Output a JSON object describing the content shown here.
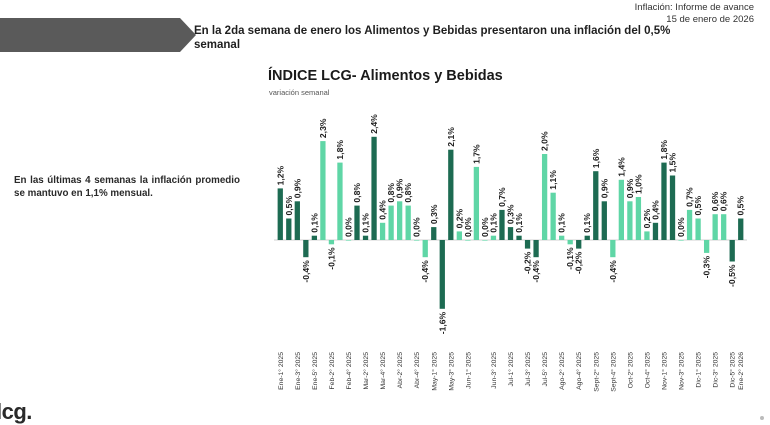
{
  "header": {
    "report_title": "Inflación: Informe de avance",
    "report_date": "15 de enero de 2026",
    "headline": "En la 2da semana de enero los Alimentos y Bebidas presentaron una inflación del 0,5% semanal"
  },
  "side_note": "En las últimas 4 semanas la inflación promedio se mantuvo en 1,1% mensual.",
  "logo_text": "lcg.",
  "colors": {
    "dark": "#1d6b52",
    "light": "#5fd6a6",
    "banner": "#5a5a5a"
  },
  "chart_data": {
    "type": "bar",
    "title": "ÍNDICE LCG- Alimentos y Bebidas",
    "subtitle": "variación semanal",
    "series": [
      {
        "name": "variación semanal",
        "values": [
          1.2,
          0.5,
          0.9,
          -0.4,
          0.1,
          2.3,
          -0.1,
          1.8,
          0.0,
          0.8,
          0.1,
          2.4,
          0.4,
          0.8,
          0.9,
          0.8,
          0.0,
          -0.4,
          0.3,
          -1.6,
          2.1,
          0.2,
          0.0,
          1.7,
          0.0,
          0.1,
          0.7,
          0.3,
          0.1,
          -0.2,
          -0.4,
          2.0,
          1.1,
          0.1,
          -0.1,
          -0.2,
          0.1,
          1.6,
          0.9,
          -0.4,
          1.4,
          0.9,
          1.0,
          0.2,
          0.4,
          1.8,
          1.5,
          0.0,
          0.7,
          0.5,
          -0.3,
          0.6,
          0.6,
          -0.5,
          0.5
        ],
        "labels": [
          "1,2%",
          "0,5%",
          "0,9%",
          "-0,4%",
          "0,1%",
          "2,3%",
          "-0,1%",
          "1,8%",
          "0,0%",
          "0,8%",
          "0,1%",
          "2,4%",
          "0,4%",
          "0,8%",
          "0,9%",
          "0,8%",
          "0,0%",
          "-0,4%",
          "0,3%",
          "-1,6%",
          "2,1%",
          "0,2%",
          "0,0%",
          "1,7%",
          "0,0%",
          "0,1%",
          "0,7%",
          "0,3%",
          "0,1%",
          "-0,2%",
          "-0,4%",
          "2,0%",
          "1,1%",
          "0,1%",
          "-0,1%",
          "-0,2%",
          "0,1%",
          "1,6%",
          "0,9%",
          "-0,4%",
          "1,4%",
          "0,9%",
          "1,0%",
          "0,2%",
          "0,4%",
          "1,8%",
          "1,5%",
          "0,0%",
          "0,7%",
          "0,5%",
          "-0,3%",
          "0,6%",
          "0,6%",
          "-0,5%",
          "0,5%"
        ],
        "shade": [
          "d",
          "d",
          "d",
          "d",
          "d",
          "l",
          "l",
          "l",
          "l",
          "d",
          "d",
          "d",
          "l",
          "l",
          "l",
          "l",
          "l",
          "l",
          "d",
          "d",
          "d",
          "l",
          "l",
          "l",
          "l",
          "l",
          "d",
          "d",
          "d",
          "d",
          "d",
          "l",
          "l",
          "l",
          "l",
          "d",
          "d",
          "d",
          "d",
          "l",
          "l",
          "l",
          "l",
          "l",
          "d",
          "d",
          "d",
          "l",
          "l",
          "l",
          "l",
          "l",
          "l",
          "d",
          "d"
        ]
      }
    ],
    "ticks": [
      {
        "index": 0,
        "label": "Ene-1° 2025"
      },
      {
        "index": 2,
        "label": "Ene-3° 2025"
      },
      {
        "index": 4,
        "label": "Ene-5° 2025"
      },
      {
        "index": 6,
        "label": "Feb-2° 2025"
      },
      {
        "index": 8,
        "label": "Feb-4° 2025"
      },
      {
        "index": 10,
        "label": "Mar-2° 2025"
      },
      {
        "index": 12,
        "label": "Mar-4° 2025"
      },
      {
        "index": 14,
        "label": "Abr-2° 2025"
      },
      {
        "index": 16,
        "label": "Abr-4° 2025"
      },
      {
        "index": 18,
        "label": "May-1° 2025"
      },
      {
        "index": 20,
        "label": "May-3° 2025"
      },
      {
        "index": 22,
        "label": "Jun-1° 2025"
      },
      {
        "index": 25,
        "label": "Jun-3° 2025"
      },
      {
        "index": 27,
        "label": "Jul-1° 2025"
      },
      {
        "index": 29,
        "label": "Jul-3° 2025"
      },
      {
        "index": 31,
        "label": "Jul-5° 2025"
      },
      {
        "index": 33,
        "label": "Ago-2° 2025"
      },
      {
        "index": 35,
        "label": "Ago-4° 2025"
      },
      {
        "index": 37,
        "label": "Sept-2° 2025"
      },
      {
        "index": 39,
        "label": "Sept-4° 2025"
      },
      {
        "index": 41,
        "label": "Oct-2° 2025"
      },
      {
        "index": 43,
        "label": "Oct-4° 2025"
      },
      {
        "index": 45,
        "label": "Nov-1° 2025"
      },
      {
        "index": 47,
        "label": "Nov-3° 2025"
      },
      {
        "index": 49,
        "label": "Dic-1° 2025"
      },
      {
        "index": 51,
        "label": "Dic-3° 2025"
      },
      {
        "index": 53,
        "label": "Dic-5° 2025"
      },
      {
        "index": 54,
        "label": "Ene-2° 2026"
      }
    ],
    "ylim": [
      -1.8,
      2.6
    ],
    "xlabel": "",
    "ylabel": ""
  }
}
